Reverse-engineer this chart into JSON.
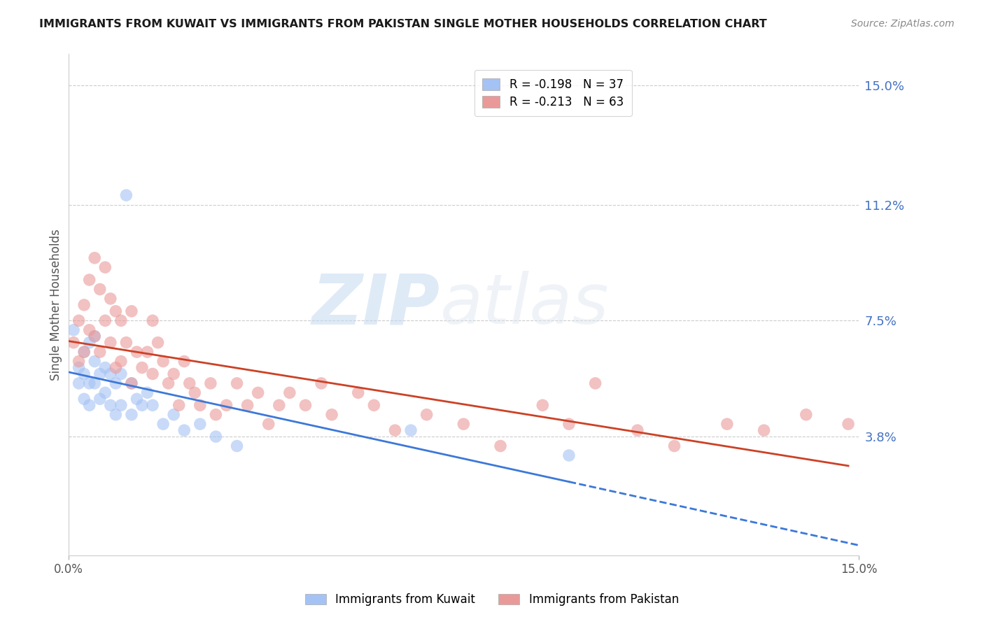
{
  "title": "IMMIGRANTS FROM KUWAIT VS IMMIGRANTS FROM PAKISTAN SINGLE MOTHER HOUSEHOLDS CORRELATION CHART",
  "source": "Source: ZipAtlas.com",
  "ylabel": "Single Mother Households",
  "y_tick_labels_right": [
    "15.0%",
    "11.2%",
    "7.5%",
    "3.8%"
  ],
  "y_tick_positions_right": [
    0.15,
    0.112,
    0.075,
    0.038
  ],
  "xlim": [
    0.0,
    0.15
  ],
  "ylim": [
    0.0,
    0.16
  ],
  "watermark_zip": "ZIP",
  "watermark_atlas": "atlas",
  "legend_kuwait": "R = -0.198   N = 37",
  "legend_pakistan": "R = -0.213   N = 63",
  "color_kuwait": "#a4c2f4",
  "color_pakistan": "#ea9999",
  "color_line_kuwait": "#3c78d8",
  "color_line_pakistan": "#cc4125",
  "grid_color": "#cccccc",
  "kuwait_x": [
    0.001,
    0.002,
    0.002,
    0.003,
    0.003,
    0.003,
    0.004,
    0.004,
    0.004,
    0.005,
    0.005,
    0.005,
    0.006,
    0.006,
    0.007,
    0.007,
    0.008,
    0.008,
    0.009,
    0.009,
    0.01,
    0.01,
    0.011,
    0.012,
    0.012,
    0.013,
    0.014,
    0.015,
    0.016,
    0.018,
    0.02,
    0.022,
    0.025,
    0.028,
    0.032,
    0.065,
    0.095
  ],
  "kuwait_y": [
    0.072,
    0.06,
    0.055,
    0.065,
    0.058,
    0.05,
    0.068,
    0.055,
    0.048,
    0.07,
    0.062,
    0.055,
    0.058,
    0.05,
    0.06,
    0.052,
    0.058,
    0.048,
    0.055,
    0.045,
    0.058,
    0.048,
    0.115,
    0.055,
    0.045,
    0.05,
    0.048,
    0.052,
    0.048,
    0.042,
    0.045,
    0.04,
    0.042,
    0.038,
    0.035,
    0.04,
    0.032
  ],
  "pakistan_x": [
    0.001,
    0.002,
    0.002,
    0.003,
    0.003,
    0.004,
    0.004,
    0.005,
    0.005,
    0.006,
    0.006,
    0.007,
    0.007,
    0.008,
    0.008,
    0.009,
    0.009,
    0.01,
    0.01,
    0.011,
    0.012,
    0.012,
    0.013,
    0.014,
    0.015,
    0.016,
    0.016,
    0.017,
    0.018,
    0.019,
    0.02,
    0.021,
    0.022,
    0.023,
    0.024,
    0.025,
    0.027,
    0.028,
    0.03,
    0.032,
    0.034,
    0.036,
    0.038,
    0.04,
    0.042,
    0.045,
    0.048,
    0.05,
    0.055,
    0.058,
    0.062,
    0.068,
    0.075,
    0.082,
    0.09,
    0.095,
    0.1,
    0.108,
    0.115,
    0.125,
    0.132,
    0.14,
    0.148
  ],
  "pakistan_y": [
    0.068,
    0.075,
    0.062,
    0.08,
    0.065,
    0.088,
    0.072,
    0.095,
    0.07,
    0.085,
    0.065,
    0.092,
    0.075,
    0.082,
    0.068,
    0.078,
    0.06,
    0.075,
    0.062,
    0.068,
    0.078,
    0.055,
    0.065,
    0.06,
    0.065,
    0.075,
    0.058,
    0.068,
    0.062,
    0.055,
    0.058,
    0.048,
    0.062,
    0.055,
    0.052,
    0.048,
    0.055,
    0.045,
    0.048,
    0.055,
    0.048,
    0.052,
    0.042,
    0.048,
    0.052,
    0.048,
    0.055,
    0.045,
    0.052,
    0.048,
    0.04,
    0.045,
    0.042,
    0.035,
    0.048,
    0.042,
    0.055,
    0.04,
    0.035,
    0.042,
    0.04,
    0.045,
    0.042
  ]
}
